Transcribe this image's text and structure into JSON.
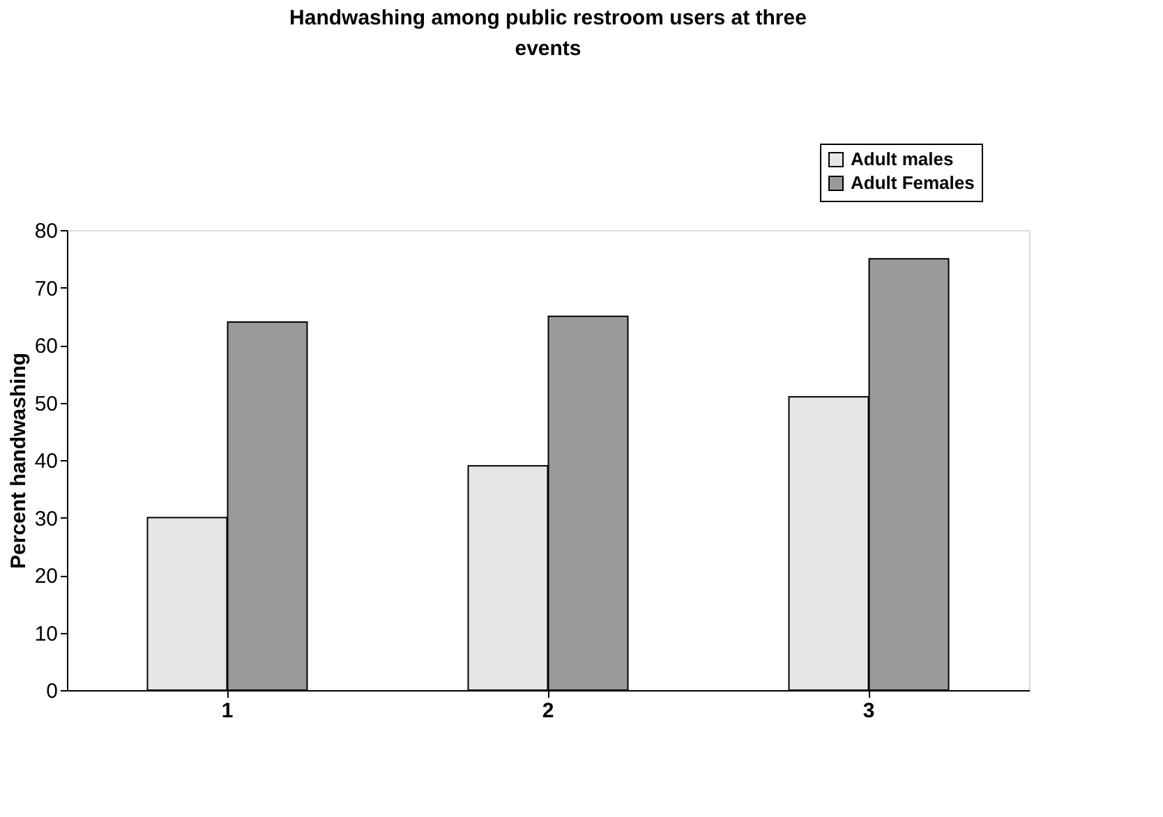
{
  "chart_data": {
    "type": "bar",
    "title": "Handwashing among public restroom users at three events",
    "ylabel": "Percent handwashing",
    "categories": [
      "1",
      "2",
      "3"
    ],
    "series": [
      {
        "name": "Adult males",
        "color": "#e6e6e6",
        "values": [
          30,
          39,
          51
        ]
      },
      {
        "name": "Adult Females",
        "color": "#9a9a9a",
        "values": [
          64,
          65,
          75
        ]
      }
    ],
    "ylim": [
      0,
      80
    ],
    "yticks": [
      0,
      10,
      20,
      30,
      40,
      50,
      60,
      70,
      80
    ],
    "grid": false,
    "legend": "top right"
  }
}
